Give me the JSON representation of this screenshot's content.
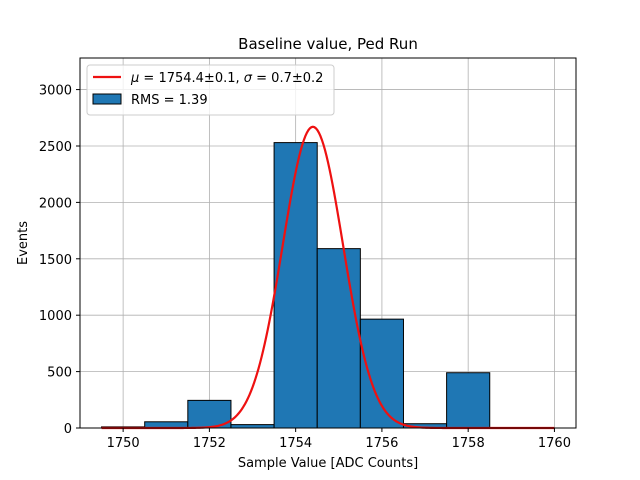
{
  "chart_data": {
    "type": "bar",
    "title": "Baseline value, Ped Run",
    "xlabel": "Sample Value [ADC Counts]",
    "ylabel": "Events",
    "xlim": [
      1749.0,
      1760.5
    ],
    "ylim": [
      0,
      3280
    ],
    "grid": true,
    "x_ticks": [
      1750,
      1752,
      1754,
      1756,
      1758,
      1760
    ],
    "x_tick_labels": [
      "1750",
      "1752",
      "1754",
      "1756",
      "1758",
      "1760"
    ],
    "y_ticks": [
      0,
      500,
      1000,
      1500,
      2000,
      2500,
      3000
    ],
    "y_tick_labels": [
      "0",
      "500",
      "1000",
      "1500",
      "2000",
      "2500",
      "3000"
    ],
    "bins": [
      {
        "x0": 1749.5,
        "x1": 1750.5,
        "value": 10
      },
      {
        "x0": 1750.5,
        "x1": 1751.5,
        "value": 55
      },
      {
        "x0": 1751.5,
        "x1": 1752.5,
        "value": 245
      },
      {
        "x0": 1752.5,
        "x1": 1753.5,
        "value": 30
      },
      {
        "x0": 1753.5,
        "x1": 1754.5,
        "value": 2530
      },
      {
        "x0": 1754.5,
        "x1": 1755.5,
        "value": 1590
      },
      {
        "x0": 1755.5,
        "x1": 1756.5,
        "value": 965
      },
      {
        "x0": 1756.5,
        "x1": 1757.5,
        "value": 38
      },
      {
        "x0": 1757.5,
        "x1": 1758.5,
        "value": 490
      }
    ],
    "fit": {
      "mu": 1754.4,
      "sigma": 0.7,
      "amplitude": 2670,
      "x_range": [
        1749.5,
        1760.0
      ]
    },
    "series": [
      {
        "name": "$\\mu = 1754.4 \\pm 0.1$, $\\sigma = 0.7 \\pm 0.2$",
        "type": "line",
        "color": "#ee1111"
      },
      {
        "name": "RMS = 1.39",
        "type": "bar",
        "color": "#1f77b4"
      }
    ],
    "legend": {
      "position": "top-left",
      "fit_label": {
        "mu_symbol": "μ",
        "mu_text": " = 1754.4±0.1, ",
        "sigma_symbol": "σ",
        "sigma_text": " = 0.7±0.2"
      },
      "hist_label": "RMS = 1.39"
    },
    "colors": {
      "bar_fill": "#1f77b4",
      "bar_edge": "#000000",
      "fit_line": "#ee1111",
      "grid": "#b0b0b0"
    }
  }
}
